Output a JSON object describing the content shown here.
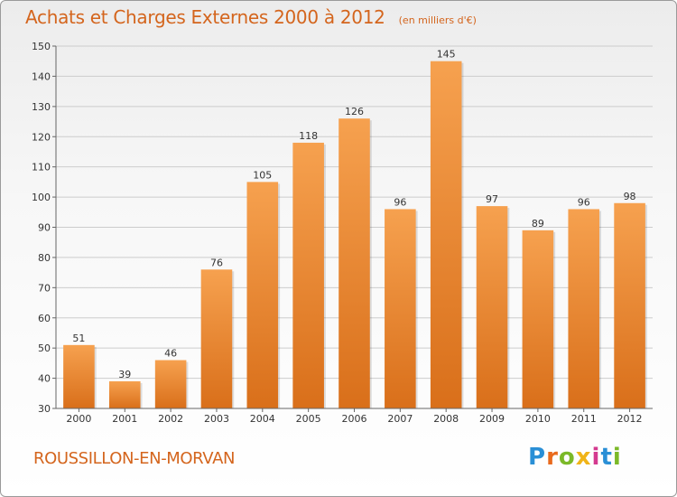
{
  "header": {
    "title": "Achats et Charges Externes 2000 à 2012",
    "unit": "(en milliers d'€)"
  },
  "footer": {
    "location": "ROUSSILLON-EN-MORVAN",
    "logo_text": "Proxiti"
  },
  "colors": {
    "accent": "#d4651d",
    "bar_top": "#f6a14f",
    "bar_bottom": "#d96f1a",
    "grid": "#cccccc"
  },
  "chart_data": {
    "type": "bar",
    "title": "Achats et Charges Externes 2000 à 2012",
    "subtitle": "(en milliers d'€)",
    "xlabel": "",
    "ylabel": "",
    "categories": [
      "2000",
      "2001",
      "2002",
      "2003",
      "2004",
      "2005",
      "2006",
      "2007",
      "2008",
      "2009",
      "2010",
      "2011",
      "2012"
    ],
    "values": [
      51,
      39,
      46,
      76,
      105,
      118,
      126,
      96,
      145,
      97,
      89,
      96,
      98
    ],
    "ylim": [
      30,
      150
    ],
    "yticks": [
      30,
      40,
      50,
      60,
      70,
      80,
      90,
      100,
      110,
      120,
      130,
      140,
      150
    ],
    "grid": true,
    "data_labels": true
  }
}
